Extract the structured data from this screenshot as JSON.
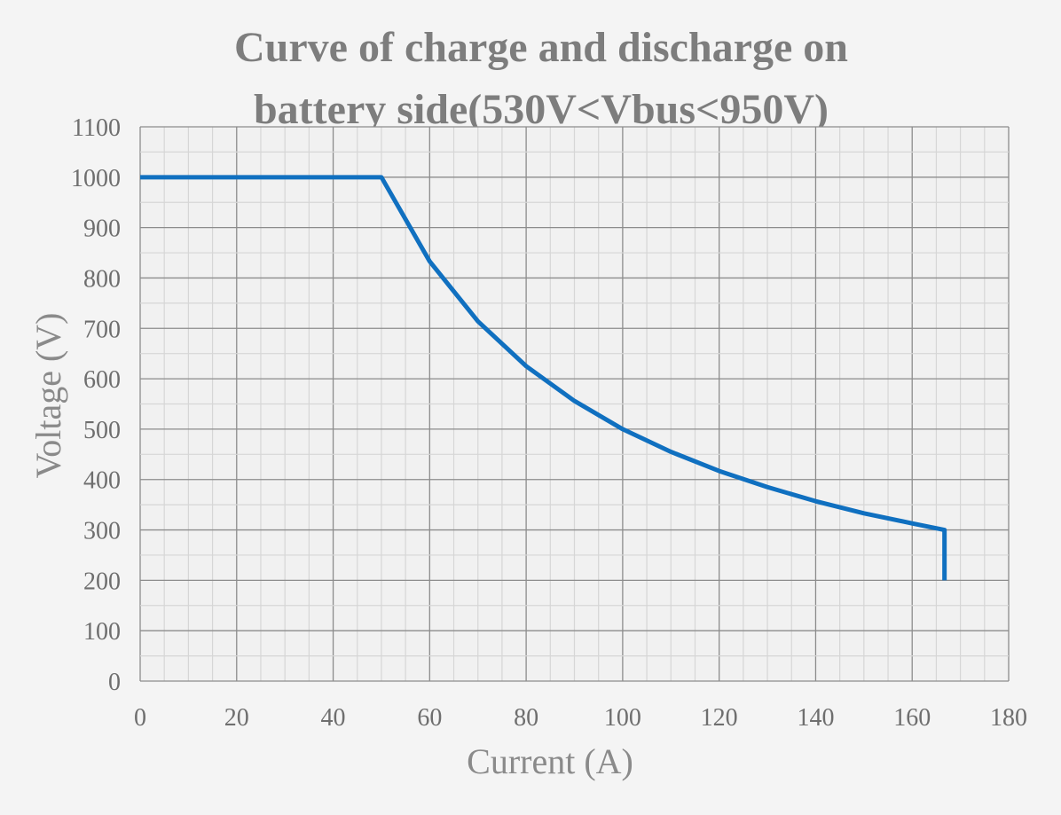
{
  "chart_data": {
    "type": "line",
    "title_lines": [
      "Curve of charge and discharge on",
      "battery side(530V<Vbus<950V)"
    ],
    "xlabel": "Current (A)",
    "ylabel": "Voltage (V)",
    "xlim": [
      0,
      180
    ],
    "ylim": [
      0,
      1100
    ],
    "xticks": [
      0,
      20,
      40,
      60,
      80,
      100,
      120,
      140,
      160,
      180
    ],
    "yticks": [
      0,
      100,
      200,
      300,
      400,
      500,
      600,
      700,
      800,
      900,
      1000,
      1100
    ],
    "x_minor_step": 5,
    "y_minor_step": 50,
    "grid": true,
    "legend": "none",
    "series": [
      {
        "color": "#1070c0",
        "x": [
          0,
          50,
          60,
          70,
          80,
          90,
          100,
          110,
          120,
          130,
          140,
          150,
          160,
          166.7,
          166.7
        ],
        "y": [
          1000,
          1000,
          833,
          714,
          625,
          556,
          500,
          455,
          417,
          385,
          357,
          333,
          313,
          300,
          200
        ]
      }
    ]
  }
}
